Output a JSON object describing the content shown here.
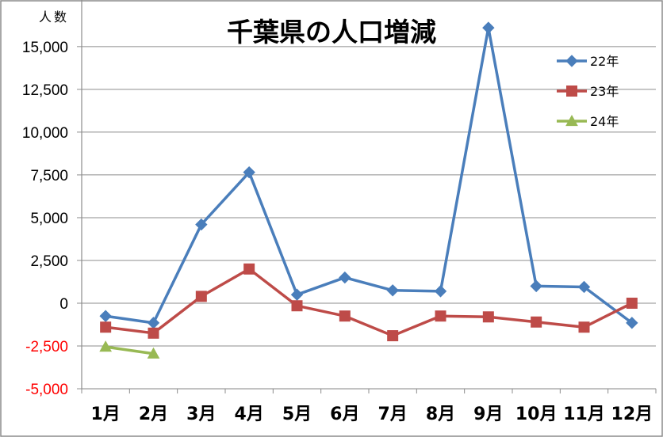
{
  "chart_data": {
    "type": "line",
    "title": "千葉県の人口増減",
    "ylabel": "人数",
    "xlabel": "",
    "categories": [
      "1月",
      "2月",
      "3月",
      "4月",
      "5月",
      "6月",
      "7月",
      "8月",
      "9月",
      "10月",
      "11月",
      "12月"
    ],
    "ylim": [
      -5000,
      17500
    ],
    "yticks": [
      {
        "value": 15000,
        "label": "15,000"
      },
      {
        "value": 12500,
        "label": "12,500"
      },
      {
        "value": 10000,
        "label": "10,000"
      },
      {
        "value": 7500,
        "label": "7,500"
      },
      {
        "value": 5000,
        "label": "5,000"
      },
      {
        "value": 2500,
        "label": "2,500"
      },
      {
        "value": 0,
        "label": "0"
      },
      {
        "value": -2500,
        "label": "-2,500"
      },
      {
        "value": -5000,
        "label": "-5,000"
      }
    ],
    "grid": true,
    "legend_position": "top-right",
    "series": [
      {
        "name": "22年",
        "color": "#4a7ebb",
        "marker": "diamond",
        "values": [
          -750,
          -1150,
          4600,
          7650,
          500,
          1500,
          750,
          700,
          16100,
          1000,
          950,
          -1150
        ]
      },
      {
        "name": "23年",
        "color": "#be4b48",
        "marker": "square",
        "values": [
          -1400,
          -1750,
          400,
          2000,
          -150,
          -750,
          -1900,
          -750,
          -800,
          -1100,
          -1400,
          0
        ]
      },
      {
        "name": "24年",
        "color": "#98b954",
        "marker": "triangle",
        "values": [
          -2550,
          -2950,
          null,
          null,
          null,
          null,
          null,
          null,
          null,
          null,
          null,
          null
        ]
      }
    ],
    "colors": {
      "axis": "#8c8c8c",
      "negative_tick": "#ff0000"
    }
  }
}
